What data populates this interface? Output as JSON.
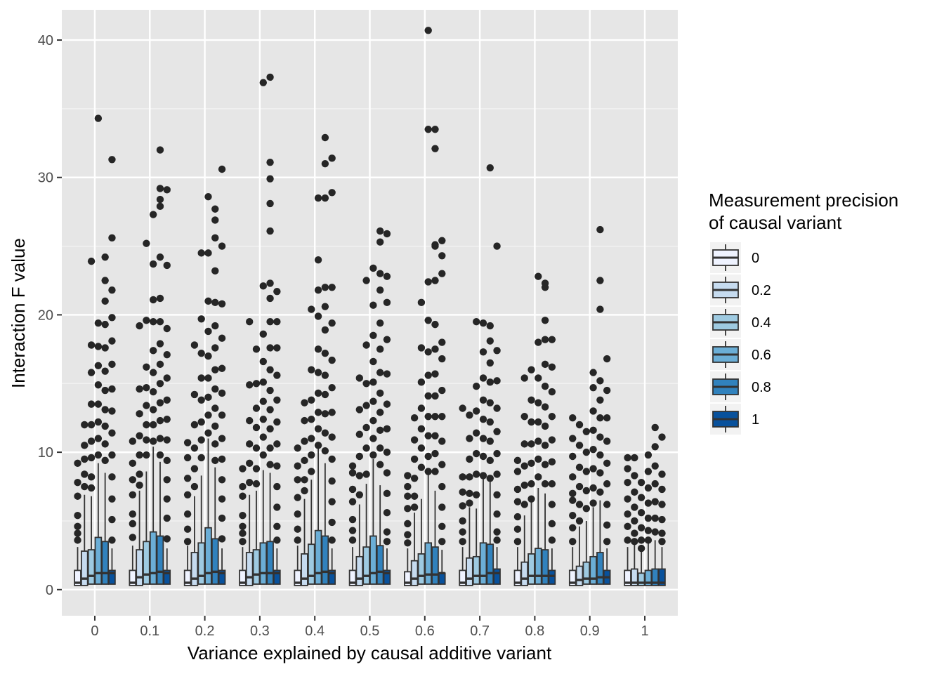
{
  "chart_data": {
    "type": "boxplot",
    "title": "",
    "xlabel": "Variance explained by causal additive variant",
    "ylabel": "Interaction F value",
    "ylim": [
      -1.9,
      42.2
    ],
    "y_ticks": [
      0,
      10,
      20,
      30,
      40
    ],
    "categories": [
      "0",
      "0.1",
      "0.2",
      "0.3",
      "0.4",
      "0.5",
      "0.6",
      "0.7",
      "0.8",
      "0.9",
      "1"
    ],
    "legend": {
      "title_line1": "Measurement precision",
      "title_line2": "of causal variant",
      "position": "right"
    },
    "panel_background": "#e6e6e6",
    "grid": true,
    "series": [
      {
        "name": "0",
        "color": "#eff3ff",
        "q1": [
          0.3,
          0.3,
          0.3,
          0.3,
          0.3,
          0.3,
          0.3,
          0.3,
          0.3,
          0.3,
          0.3
        ],
        "median": [
          0.5,
          0.5,
          0.5,
          0.5,
          0.5,
          0.5,
          0.5,
          0.5,
          0.5,
          0.5,
          0.5
        ],
        "q3": [
          1.4,
          1.4,
          1.4,
          1.4,
          1.4,
          1.4,
          1.3,
          1.4,
          1.4,
          1.4,
          1.4
        ],
        "whisker_high": [
          3.1,
          3.2,
          3.2,
          3.1,
          3.2,
          3.1,
          3.0,
          3.1,
          3.1,
          3.1,
          3.1
        ],
        "outliers": [
          [
            9.2,
            7.8,
            6.8,
            5.4,
            4.6,
            4.1,
            3.6
          ],
          [
            10.8,
            9.2,
            8.0,
            6.9,
            5.5,
            4.8,
            3.8
          ],
          [
            10.7,
            9.6,
            8.1,
            6.9,
            5.5,
            4.4,
            3.5
          ],
          [
            8.8,
            7.5,
            6.8,
            5.4,
            4.6,
            4.1,
            3.5
          ],
          [
            10.3,
            9.0,
            8.0,
            6.7,
            5.5,
            4.4,
            3.6
          ],
          [
            9.0,
            8.5,
            7.3,
            6.4,
            5.1,
            4.3,
            3.6
          ],
          [
            8.3,
            7.5,
            6.8,
            5.9,
            4.8,
            4.0,
            3.4
          ],
          [
            13.2,
            8.2,
            7.1,
            6.1,
            5.0,
            4.2,
            3.5
          ],
          [
            9.4,
            8.6,
            7.3,
            6.4,
            5.3,
            4.4,
            3.5
          ],
          [
            12.5,
            11.0,
            9.7,
            8.2,
            7.0,
            6.5,
            5.4,
            4.5,
            3.5
          ],
          [
            9.6,
            8.8,
            7.8,
            6.6,
            5.5,
            4.6,
            3.6
          ]
        ]
      },
      {
        "name": "0.2",
        "color": "#c6dbef",
        "q1": [
          0.3,
          0.3,
          0.3,
          0.3,
          0.3,
          0.3,
          0.3,
          0.3,
          0.3,
          0.3,
          0.3
        ],
        "median": [
          0.8,
          0.9,
          0.8,
          0.9,
          0.8,
          0.8,
          0.8,
          0.8,
          0.8,
          0.7,
          0.5
        ],
        "q3": [
          2.8,
          2.9,
          2.7,
          2.7,
          2.6,
          2.4,
          2.1,
          2.3,
          2.0,
          1.7,
          1.5
        ],
        "whisker_high": [
          6.9,
          7.2,
          6.8,
          6.9,
          6.6,
          6.2,
          5.6,
          6.0,
          5.4,
          4.6,
          3.3
        ],
        "outliers": [
          [
            12.0,
            10.5,
            9.5,
            8.4,
            7.5
          ],
          [
            19.2,
            14.6,
            12.8,
            11.2,
            9.8,
            8.4,
            7.6
          ],
          [
            17.8,
            14.2,
            12.0,
            10.3,
            8.8,
            7.5
          ],
          [
            19.5,
            14.9,
            12.3,
            10.6,
            9.2,
            7.8
          ],
          [
            13.6,
            12.3,
            10.8,
            9.4,
            8.0,
            7.2
          ],
          [
            15.4,
            13.1,
            11.3,
            9.7,
            8.3,
            6.9
          ],
          [
            12.5,
            10.9,
            9.5,
            8.1,
            6.8,
            6.0
          ],
          [
            12.7,
            11.0,
            9.5,
            8.2,
            7.0,
            6.3
          ],
          [
            15.4,
            12.6,
            10.6,
            9.0,
            7.6,
            6.2
          ],
          [
            12.0,
            10.5,
            8.9,
            7.5,
            6.2,
            5.0
          ],
          [
            9.6,
            8.3,
            7.1,
            6.0,
            5.0,
            4.1,
            3.5
          ]
        ]
      },
      {
        "name": "0.4",
        "color": "#9ecae1",
        "q1": [
          0.4,
          0.4,
          0.4,
          0.4,
          0.4,
          0.4,
          0.4,
          0.4,
          0.4,
          0.4,
          0.3
        ],
        "median": [
          1.0,
          1.1,
          1.0,
          1.1,
          1.0,
          1.0,
          1.0,
          1.0,
          1.0,
          0.8,
          0.5
        ],
        "q3": [
          2.9,
          3.5,
          3.4,
          2.9,
          3.3,
          3.1,
          2.6,
          2.4,
          2.6,
          2.0,
          1.2
        ],
        "whisker_high": [
          6.8,
          8.6,
          8.3,
          7.2,
          8.0,
          7.7,
          6.6,
          5.9,
          6.5,
          5.0,
          2.8
        ],
        "outliers": [
          [
            23.9,
            17.8,
            15.8,
            13.5,
            12.0,
            10.8,
            9.6,
            8.2,
            7.4
          ],
          [
            25.2,
            19.6,
            16.2,
            14.7,
            13.4,
            12.0,
            10.9,
            9.8
          ],
          [
            24.5,
            19.7,
            17.2,
            15.4,
            13.8,
            12.2,
            10.9,
            9.6
          ],
          [
            17.5,
            15.0,
            13.2,
            11.8,
            10.3,
            8.8,
            7.7
          ],
          [
            20.4,
            16.0,
            13.8,
            12.4,
            11.0,
            9.8,
            8.6
          ],
          [
            22.5,
            17.8,
            15.0,
            13.4,
            11.8,
            10.3,
            8.4
          ],
          [
            20.9,
            17.6,
            15.1,
            13.2,
            11.7,
            10.3,
            8.9
          ],
          [
            19.5,
            14.8,
            13.0,
            11.4,
            9.9,
            8.4,
            6.9
          ],
          [
            16.0,
            13.8,
            12.2,
            10.6,
            9.2,
            7.7,
            6.6
          ],
          [
            11.5,
            10.0,
            8.6,
            7.2,
            5.9
          ],
          [
            7.8,
            6.7,
            5.6,
            4.5,
            3.6,
            3.0
          ]
        ]
      },
      {
        "name": "0.6",
        "color": "#6baed6",
        "q1": [
          0.4,
          0.4,
          0.4,
          0.4,
          0.4,
          0.4,
          0.4,
          0.4,
          0.4,
          0.4,
          0.3
        ],
        "median": [
          1.2,
          1.2,
          1.2,
          1.2,
          1.2,
          1.2,
          1.1,
          1.0,
          1.0,
          0.8,
          0.5
        ],
        "q3": [
          3.8,
          4.2,
          4.5,
          3.4,
          4.3,
          3.9,
          3.4,
          3.4,
          3.0,
          2.4,
          1.4
        ],
        "whisker_high": [
          9.2,
          10.4,
          11.0,
          8.7,
          10.3,
          9.5,
          8.4,
          8.1,
          7.4,
          6.0,
          3.4
        ],
        "outliers": [
          [
            34.3,
            19.4,
            17.7,
            16.3,
            14.9,
            13.5,
            12.2,
            11.0,
            9.8
          ],
          [
            27.3,
            23.7,
            21.1,
            19.5,
            17.4,
            15.8,
            14.4,
            13.1,
            12.0,
            10.8
          ],
          [
            28.6,
            24.5,
            21.0,
            18.8,
            17.0,
            15.4,
            14.0,
            12.7,
            11.4
          ],
          [
            36.9,
            22.1,
            18.6,
            16.6,
            15.1,
            13.7,
            12.4,
            11.1,
            9.8
          ],
          [
            28.5,
            24.0,
            21.8,
            19.9,
            17.5,
            15.8,
            14.3,
            12.9,
            11.7,
            10.5
          ],
          [
            23.4,
            20.7,
            18.5,
            16.6,
            15.1,
            13.7,
            12.3,
            11.0,
            9.8
          ],
          [
            40.7,
            33.5,
            22.4,
            19.6,
            17.3,
            15.6,
            14.1,
            12.6,
            11.2,
            9.7,
            8.6
          ],
          [
            19.4,
            17.3,
            15.4,
            13.8,
            12.4,
            11.0,
            9.7,
            8.3
          ],
          [
            22.8,
            18.0,
            15.4,
            13.6,
            12.2,
            10.8,
            9.5,
            8.2
          ],
          [
            15.8,
            14.7,
            13.0,
            11.6,
            10.2,
            8.8,
            7.4,
            6.3
          ],
          [
            9.8,
            8.6,
            7.4,
            6.3,
            5.2,
            4.3,
            3.6
          ]
        ]
      },
      {
        "name": "0.8",
        "color": "#3182bd",
        "q1": [
          0.4,
          0.4,
          0.4,
          0.4,
          0.4,
          0.4,
          0.4,
          0.4,
          0.4,
          0.4,
          0.3
        ],
        "median": [
          1.2,
          1.3,
          1.3,
          1.2,
          1.3,
          1.3,
          1.1,
          1.2,
          1.0,
          0.9,
          0.5
        ],
        "q3": [
          3.5,
          3.9,
          3.7,
          3.5,
          3.9,
          3.2,
          3.1,
          3.3,
          2.9,
          2.7,
          1.5
        ],
        "whisker_high": [
          8.5,
          9.3,
          8.9,
          8.5,
          9.2,
          7.6,
          7.2,
          7.9,
          7.0,
          6.5,
          3.6
        ],
        "outliers": [
          [
            24.2,
            22.5,
            21.0,
            19.3,
            17.6,
            15.9,
            14.5,
            13.1,
            11.9,
            10.6,
            9.4
          ],
          [
            32.0,
            29.2,
            28.4,
            27.9,
            24.2,
            21.2,
            19.5,
            17.9,
            16.4,
            15.0,
            13.6,
            12.3,
            11.0,
            9.8
          ],
          [
            27.7,
            26.9,
            25.6,
            23.2,
            20.9,
            19.2,
            17.6,
            16.0,
            14.6,
            13.2,
            11.9,
            10.6,
            9.4
          ],
          [
            37.3,
            31.1,
            29.9,
            28.1,
            26.1,
            22.3,
            21.2,
            19.5,
            17.6,
            16.0,
            14.5,
            13.1,
            11.7,
            10.3,
            9.1
          ],
          [
            32.9,
            31.0,
            28.5,
            22.0,
            20.6,
            18.9,
            17.2,
            15.6,
            14.2,
            12.8,
            11.4,
            10.1
          ],
          [
            26.1,
            25.3,
            23.0,
            21.8,
            19.4,
            17.5,
            15.8,
            14.3,
            12.9,
            11.6,
            10.3,
            9.1
          ],
          [
            33.5,
            32.1,
            25.1,
            25.0,
            22.5,
            19.3,
            17.5,
            15.7,
            14.1,
            12.6,
            11.2,
            9.9,
            8.6
          ],
          [
            30.7,
            19.2,
            18.1,
            16.5,
            15.1,
            13.6,
            12.2,
            10.8,
            9.4,
            8.1
          ],
          [
            22.3,
            22.0,
            19.6,
            18.2,
            16.4,
            14.8,
            13.3,
            11.9,
            10.5,
            9.1,
            7.7
          ],
          [
            26.2,
            22.5,
            20.4,
            15.2,
            13.8,
            12.5,
            11.1,
            9.8,
            8.5,
            7.1
          ],
          [
            11.8,
            10.4,
            9.0,
            7.7,
            6.4,
            5.2,
            4.2
          ]
        ]
      },
      {
        "name": "1",
        "color": "#08519c",
        "q1": [
          0.4,
          0.4,
          0.4,
          0.4,
          0.4,
          0.4,
          0.4,
          0.4,
          0.4,
          0.4,
          0.3
        ],
        "median": [
          1.2,
          1.2,
          1.2,
          1.2,
          1.2,
          1.2,
          1.2,
          1.2,
          1.0,
          0.9,
          0.5
        ],
        "q3": [
          1.4,
          1.4,
          1.4,
          1.4,
          1.4,
          1.4,
          1.2,
          1.5,
          1.4,
          1.4,
          1.5
        ],
        "whisker_high": [
          3.0,
          3.0,
          3.0,
          3.0,
          3.0,
          3.0,
          2.9,
          3.1,
          3.0,
          3.0,
          3.1
        ],
        "outliers": [
          [
            31.3,
            25.6,
            21.8,
            19.8,
            18.1,
            16.4,
            14.6,
            13.0,
            11.4,
            9.8,
            8.2,
            6.6,
            5.1,
            3.6
          ],
          [
            29.1,
            23.6,
            19.0,
            17.1,
            15.4,
            13.8,
            12.4,
            10.9,
            9.4,
            8.0,
            6.6,
            5.2,
            3.7
          ],
          [
            30.6,
            25.0,
            20.8,
            18.3,
            16.1,
            14.3,
            12.7,
            11.0,
            9.5,
            8.0,
            6.6,
            5.2,
            3.7
          ],
          [
            21.7,
            19.5,
            17.6,
            15.6,
            13.8,
            12.2,
            10.6,
            9.0,
            7.5,
            6.0,
            4.6,
            3.6
          ],
          [
            31.4,
            28.9,
            22.0,
            19.4,
            16.7,
            14.7,
            12.9,
            11.1,
            9.5,
            7.9,
            6.4,
            4.9,
            3.6
          ],
          [
            25.9,
            22.8,
            20.9,
            18.2,
            15.7,
            13.5,
            11.7,
            10.0,
            8.5,
            7.0,
            5.6,
            4.2,
            3.5
          ],
          [
            25.4,
            24.3,
            23.0,
            18.0,
            16.8,
            14.5,
            12.6,
            10.8,
            9.1,
            7.5,
            6.0,
            4.6,
            3.5
          ],
          [
            25.0,
            17.4,
            15.2,
            13.2,
            11.5,
            9.9,
            8.4,
            6.9,
            5.5,
            4.2,
            3.6
          ],
          [
            18.2,
            16.2,
            14.4,
            12.6,
            10.9,
            9.3,
            7.7,
            6.2,
            4.8,
            3.6
          ],
          [
            16.8,
            14.5,
            12.5,
            10.8,
            9.2,
            7.7,
            6.2,
            4.7,
            3.5
          ],
          [
            11.1,
            8.4,
            7.3,
            6.2,
            5.1,
            4.1,
            3.5
          ]
        ]
      }
    ]
  }
}
